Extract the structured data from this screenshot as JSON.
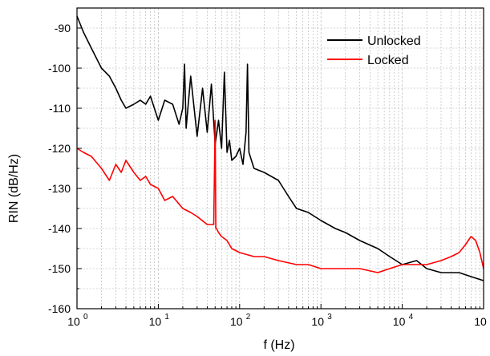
{
  "chart_data": {
    "type": "line",
    "xlabel": "f (Hz)",
    "ylabel": "RIN (dB/Hz)",
    "xscale": "log",
    "xlim": [
      1,
      100000
    ],
    "ylim": [
      -160,
      -85
    ],
    "grid": true,
    "legend_position": "top-right",
    "x_ticks": [
      {
        "value": 1,
        "base": "10",
        "exp": "0"
      },
      {
        "value": 10,
        "base": "10",
        "exp": "1"
      },
      {
        "value": 100,
        "base": "10",
        "exp": "2"
      },
      {
        "value": 1000,
        "base": "10",
        "exp": "3"
      },
      {
        "value": 10000,
        "base": "10",
        "exp": "4"
      },
      {
        "value": 100000,
        "base": "10",
        "exp": "5"
      }
    ],
    "y_ticks": [
      {
        "value": -90,
        "label": "-90"
      },
      {
        "value": -100,
        "label": "-100"
      },
      {
        "value": -110,
        "label": "-110"
      },
      {
        "value": -120,
        "label": "-120"
      },
      {
        "value": -130,
        "label": "-130"
      },
      {
        "value": -140,
        "label": "-140"
      },
      {
        "value": -150,
        "label": "-150"
      },
      {
        "value": -160,
        "label": "-160"
      }
    ],
    "series": [
      {
        "name": "Unlocked",
        "color": "#000000",
        "x": [
          1,
          1.2,
          1.5,
          2,
          2.5,
          3,
          3.5,
          4,
          5,
          6,
          7,
          8,
          10,
          12,
          15,
          18,
          20,
          21,
          22,
          25,
          30,
          35,
          40,
          45,
          50,
          55,
          60,
          65,
          70,
          75,
          80,
          90,
          100,
          110,
          120,
          125,
          130,
          150,
          200,
          300,
          400,
          500,
          700,
          1000,
          1500,
          2000,
          3000,
          5000,
          7000,
          10000,
          15000,
          20000,
          30000,
          50000,
          70000,
          100000
        ],
        "y": [
          -87,
          -91,
          -95,
          -100,
          -102,
          -105,
          -108,
          -110,
          -109,
          -108,
          -109,
          -107,
          -113,
          -108,
          -109,
          -114,
          -110,
          -99,
          -115,
          -102,
          -117,
          -105,
          -116,
          -104,
          -119,
          -113,
          -120,
          -101,
          -121,
          -118,
          -123,
          -122,
          -120,
          -124,
          -116,
          -99,
          -121,
          -125,
          -126,
          -128,
          -132,
          -135,
          -136,
          -138,
          -140,
          -141,
          -143,
          -145,
          -147,
          -149,
          -148,
          -150,
          -151,
          -151,
          -152,
          -153
        ]
      },
      {
        "name": "Locked",
        "color": "#ff0000",
        "x": [
          1,
          1.2,
          1.5,
          2,
          2.5,
          3,
          3.5,
          4,
          5,
          6,
          7,
          8,
          10,
          12,
          15,
          20,
          25,
          30,
          40,
          48,
          50,
          51,
          52,
          55,
          60,
          70,
          80,
          100,
          150,
          200,
          300,
          500,
          700,
          1000,
          1500,
          2000,
          3000,
          5000,
          7000,
          10000,
          15000,
          20000,
          30000,
          40000,
          50000,
          60000,
          70000,
          80000,
          90000,
          100000
        ],
        "y": [
          -120,
          -121,
          -122,
          -125,
          -128,
          -124,
          -126,
          -123,
          -126,
          -128,
          -127,
          -129,
          -130,
          -133,
          -132,
          -135,
          -136,
          -137,
          -139,
          -139,
          -113,
          -140,
          -140,
          -141,
          -142,
          -143,
          -145,
          -146,
          -147,
          -147,
          -148,
          -149,
          -149,
          -150,
          -150,
          -150,
          -150,
          -151,
          -150,
          -149,
          -149,
          -149,
          -148,
          -147,
          -146,
          -144,
          -142,
          -143,
          -146,
          -150
        ]
      }
    ]
  }
}
